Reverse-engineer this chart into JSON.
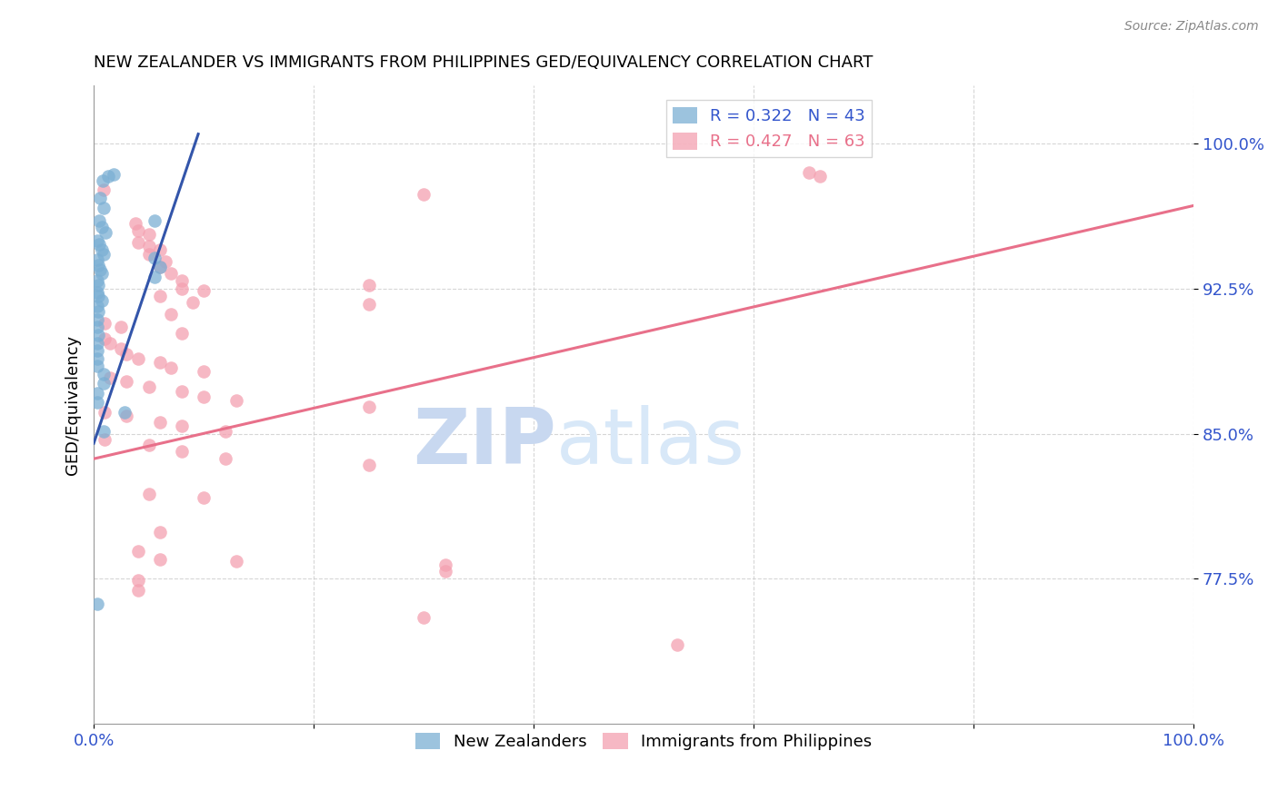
{
  "title": "NEW ZEALANDER VS IMMIGRANTS FROM PHILIPPINES GED/EQUIVALENCY CORRELATION CHART",
  "source": "Source: ZipAtlas.com",
  "ylabel": "GED/Equivalency",
  "ytick_labels": [
    "100.0%",
    "92.5%",
    "85.0%",
    "77.5%"
  ],
  "ytick_values": [
    1.0,
    0.925,
    0.85,
    0.775
  ],
  "xrange": [
    0.0,
    1.0
  ],
  "yrange": [
    0.7,
    1.03
  ],
  "legend_label1": "New Zealanders",
  "legend_label2": "Immigrants from Philippines",
  "blue_color": "#7BAFD4",
  "pink_color": "#F4A0B0",
  "blue_line_color": "#3355AA",
  "pink_line_color": "#E8708A",
  "blue_line_x0": 0.0,
  "blue_line_y0": 0.845,
  "blue_line_x1": 0.095,
  "blue_line_y1": 1.005,
  "pink_line_x0": 0.0,
  "pink_line_y0": 0.837,
  "pink_line_x1": 1.0,
  "pink_line_y1": 0.968,
  "blue_scatter": [
    [
      0.008,
      0.981
    ],
    [
      0.013,
      0.983
    ],
    [
      0.018,
      0.984
    ],
    [
      0.006,
      0.972
    ],
    [
      0.009,
      0.967
    ],
    [
      0.005,
      0.96
    ],
    [
      0.007,
      0.957
    ],
    [
      0.011,
      0.954
    ],
    [
      0.003,
      0.95
    ],
    [
      0.005,
      0.948
    ],
    [
      0.007,
      0.945
    ],
    [
      0.009,
      0.943
    ],
    [
      0.003,
      0.94
    ],
    [
      0.004,
      0.937
    ],
    [
      0.006,
      0.935
    ],
    [
      0.007,
      0.933
    ],
    [
      0.003,
      0.929
    ],
    [
      0.004,
      0.927
    ],
    [
      0.003,
      0.923
    ],
    [
      0.004,
      0.921
    ],
    [
      0.007,
      0.919
    ],
    [
      0.003,
      0.916
    ],
    [
      0.004,
      0.913
    ],
    [
      0.003,
      0.909
    ],
    [
      0.003,
      0.905
    ],
    [
      0.004,
      0.901
    ],
    [
      0.003,
      0.897
    ],
    [
      0.003,
      0.893
    ],
    [
      0.003,
      0.889
    ],
    [
      0.003,
      0.885
    ],
    [
      0.009,
      0.881
    ],
    [
      0.009,
      0.876
    ],
    [
      0.003,
      0.871
    ],
    [
      0.003,
      0.866
    ],
    [
      0.028,
      0.861
    ],
    [
      0.055,
      0.941
    ],
    [
      0.06,
      0.936
    ],
    [
      0.055,
      0.931
    ],
    [
      0.009,
      0.851
    ],
    [
      0.003,
      0.762
    ],
    [
      0.055,
      0.96
    ]
  ],
  "pink_scatter": [
    [
      0.65,
      0.985
    ],
    [
      0.66,
      0.983
    ],
    [
      0.009,
      0.976
    ],
    [
      0.3,
      0.974
    ],
    [
      0.038,
      0.959
    ],
    [
      0.04,
      0.955
    ],
    [
      0.05,
      0.953
    ],
    [
      0.04,
      0.949
    ],
    [
      0.05,
      0.947
    ],
    [
      0.06,
      0.945
    ],
    [
      0.05,
      0.943
    ],
    [
      0.065,
      0.939
    ],
    [
      0.06,
      0.936
    ],
    [
      0.07,
      0.933
    ],
    [
      0.08,
      0.929
    ],
    [
      0.25,
      0.927
    ],
    [
      0.08,
      0.925
    ],
    [
      0.1,
      0.924
    ],
    [
      0.06,
      0.921
    ],
    [
      0.09,
      0.918
    ],
    [
      0.25,
      0.917
    ],
    [
      0.07,
      0.912
    ],
    [
      0.01,
      0.907
    ],
    [
      0.025,
      0.905
    ],
    [
      0.08,
      0.902
    ],
    [
      0.01,
      0.899
    ],
    [
      0.015,
      0.897
    ],
    [
      0.025,
      0.894
    ],
    [
      0.03,
      0.891
    ],
    [
      0.04,
      0.889
    ],
    [
      0.06,
      0.887
    ],
    [
      0.07,
      0.884
    ],
    [
      0.1,
      0.882
    ],
    [
      0.015,
      0.879
    ],
    [
      0.03,
      0.877
    ],
    [
      0.05,
      0.874
    ],
    [
      0.08,
      0.872
    ],
    [
      0.1,
      0.869
    ],
    [
      0.13,
      0.867
    ],
    [
      0.25,
      0.864
    ],
    [
      0.01,
      0.861
    ],
    [
      0.03,
      0.859
    ],
    [
      0.06,
      0.856
    ],
    [
      0.08,
      0.854
    ],
    [
      0.12,
      0.851
    ],
    [
      0.01,
      0.847
    ],
    [
      0.05,
      0.844
    ],
    [
      0.08,
      0.841
    ],
    [
      0.12,
      0.837
    ],
    [
      0.25,
      0.834
    ],
    [
      0.05,
      0.819
    ],
    [
      0.1,
      0.817
    ],
    [
      0.06,
      0.799
    ],
    [
      0.04,
      0.789
    ],
    [
      0.06,
      0.785
    ],
    [
      0.13,
      0.784
    ],
    [
      0.32,
      0.782
    ],
    [
      0.32,
      0.779
    ],
    [
      0.04,
      0.774
    ],
    [
      0.04,
      0.769
    ],
    [
      0.3,
      0.755
    ],
    [
      0.53,
      0.741
    ]
  ],
  "watermark_zip": "ZIP",
  "watermark_atlas": "atlas",
  "background_color": "#ffffff",
  "grid_color": "#cccccc"
}
